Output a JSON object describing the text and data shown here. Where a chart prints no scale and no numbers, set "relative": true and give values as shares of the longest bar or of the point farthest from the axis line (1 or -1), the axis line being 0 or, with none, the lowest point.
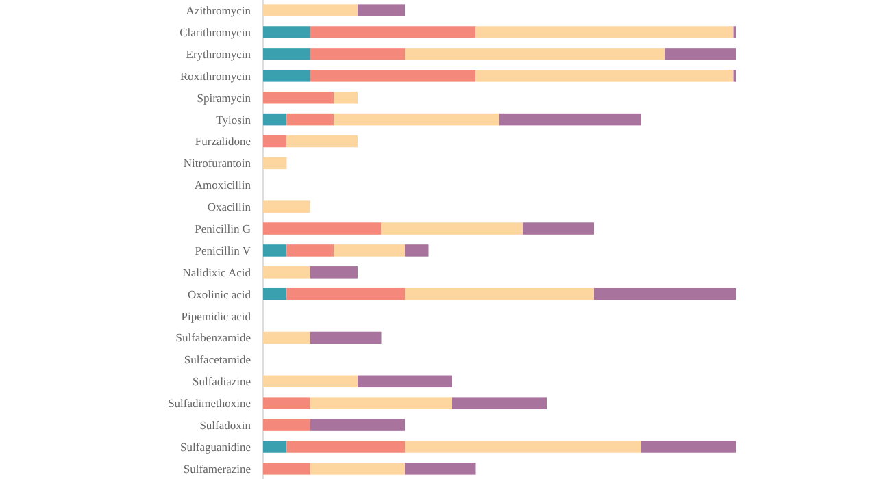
{
  "chart_data": {
    "type": "bar",
    "orientation": "horizontal",
    "stacked": true,
    "relative": true,
    "categories": [
      "Azithromycin",
      "Clarithromycin",
      "Erythromycin",
      "Roxithromycin",
      "Spiramycin",
      "Tylosin",
      "Furzalidone",
      "Nitrofurantoin",
      "Amoxicillin",
      "Oxacillin",
      "Penicillin G",
      "Penicillin V",
      "Nalidixic Acid",
      "Oxolinic acid",
      "Pipemidic acid",
      "Sulfabenzamide",
      "Sulfacetamide",
      "Sulfadiazine",
      "Sulfadimethoxine",
      "Sulfadoxin",
      "Sulfaguanidine",
      "Sulfamerazine"
    ],
    "series": [
      {
        "color": "#3a9fae",
        "values": [
          0,
          0.1,
          0.1,
          0.1,
          0,
          0.05,
          0,
          0,
          0,
          0,
          0,
          0.05,
          0,
          0.05,
          0,
          0,
          0,
          0,
          0,
          0,
          0.05,
          0
        ]
      },
      {
        "color": "#f4897b",
        "values": [
          0,
          0.35,
          0.2,
          0.35,
          0.15,
          0.1,
          0.05,
          0,
          0,
          0,
          0.25,
          0.1,
          0,
          0.25,
          0,
          0,
          0,
          0,
          0.1,
          0.1,
          0.25,
          0.1
        ]
      },
      {
        "color": "#fcd59f",
        "values": [
          0.2,
          0.545,
          0.55,
          0.545,
          0.05,
          0.35,
          0.15,
          0.05,
          0,
          0.1,
          0.3,
          0.15,
          0.1,
          0.4,
          0,
          0.1,
          0,
          0.2,
          0.3,
          0,
          0.5,
          0.2
        ]
      },
      {
        "color": "#a8749e",
        "values": [
          0.1,
          0.005,
          0.15,
          0.005,
          0,
          0.3,
          0,
          0,
          0,
          0,
          0.15,
          0.05,
          0.1,
          0.3,
          0,
          0.15,
          0,
          0.2,
          0.2,
          0.2,
          0.2,
          0.15
        ]
      }
    ]
  }
}
